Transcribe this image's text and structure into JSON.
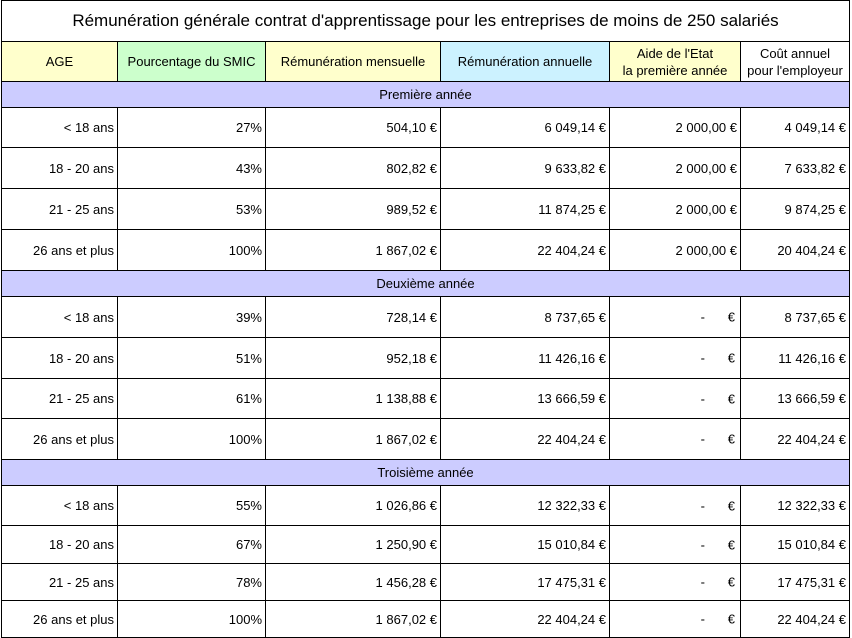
{
  "title": "Rémunération générale contrat d'apprentissage pour les entreprises de moins de 250 salariés",
  "headers": {
    "age": "AGE",
    "pct": "Pourcentage du SMIC",
    "mensuelle": "Rémunération mensuelle",
    "annuelle": "Rémunération annuelle",
    "aide_line1": "Aide de l'Etat",
    "aide_line2": "la première année",
    "cout_line1": "Coût annuel",
    "cout_line2": "pour l'employeur"
  },
  "sections": [
    {
      "label": "Première année",
      "rows": [
        {
          "age": "< 18 ans",
          "pct": "27%",
          "mensuelle": "504,10 €",
          "annuelle": "6 049,14 €",
          "aide": "2 000,00 €",
          "cout": "4 049,14 €"
        },
        {
          "age": "18 - 20 ans",
          "pct": "43%",
          "mensuelle": "802,82 €",
          "annuelle": "9 633,82 €",
          "aide": "2 000,00 €",
          "cout": "7 633,82 €"
        },
        {
          "age": "21 - 25 ans",
          "pct": "53%",
          "mensuelle": "989,52 €",
          "annuelle": "11 874,25 €",
          "aide": "2 000,00 €",
          "cout": "9 874,25 €"
        },
        {
          "age": "26 ans et plus",
          "pct": "100%",
          "mensuelle": "1 867,02 €",
          "annuelle": "22 404,24 €",
          "aide": "2 000,00 €",
          "cout": "20 404,24 €"
        }
      ]
    },
    {
      "label": "Deuxième année",
      "rows": [
        {
          "age": "< 18 ans",
          "pct": "39%",
          "mensuelle": "728,14 €",
          "annuelle": "8 737,65 €",
          "aide_dash": "-",
          "aide_cur": "€",
          "cout": "8 737,65 €"
        },
        {
          "age": "18 - 20 ans",
          "pct": "51%",
          "mensuelle": "952,18 €",
          "annuelle": "11 426,16 €",
          "aide_dash": "-",
          "aide_cur": "€",
          "cout": "11 426,16 €"
        },
        {
          "age": "21 - 25 ans",
          "pct": "61%",
          "mensuelle": "1 138,88 €",
          "annuelle": "13 666,59 €",
          "aide_dash": "-",
          "aide_cur": "€",
          "cout": "13 666,59 €"
        },
        {
          "age": "26 ans et plus",
          "pct": "100%",
          "mensuelle": "1 867,02 €",
          "annuelle": "22 404,24 €",
          "aide_dash": "-",
          "aide_cur": "€",
          "cout": "22 404,24 €"
        }
      ]
    },
    {
      "label": "Troisième année",
      "rows": [
        {
          "age": "< 18 ans",
          "pct": "55%",
          "mensuelle": "1 026,86 €",
          "annuelle": "12 322,33 €",
          "aide_dash": "-",
          "aide_cur": "€",
          "cout": "12 322,33 €"
        },
        {
          "age": "18 - 20 ans",
          "pct": "67%",
          "mensuelle": "1 250,90 €",
          "annuelle": "15 010,84 €",
          "aide_dash": "-",
          "aide_cur": "€",
          "cout": "15 010,84 €"
        },
        {
          "age": "21 - 25 ans",
          "pct": "78%",
          "mensuelle": "1 456,28 €",
          "annuelle": "17 475,31 €",
          "aide_dash": "-",
          "aide_cur": "€",
          "cout": "17 475,31 €"
        },
        {
          "age": "26 ans et plus",
          "pct": "100%",
          "mensuelle": "1 867,02 €",
          "annuelle": "22 404,24 €",
          "aide_dash": "-",
          "aide_cur": "€",
          "cout": "22 404,24 €"
        }
      ]
    }
  ]
}
